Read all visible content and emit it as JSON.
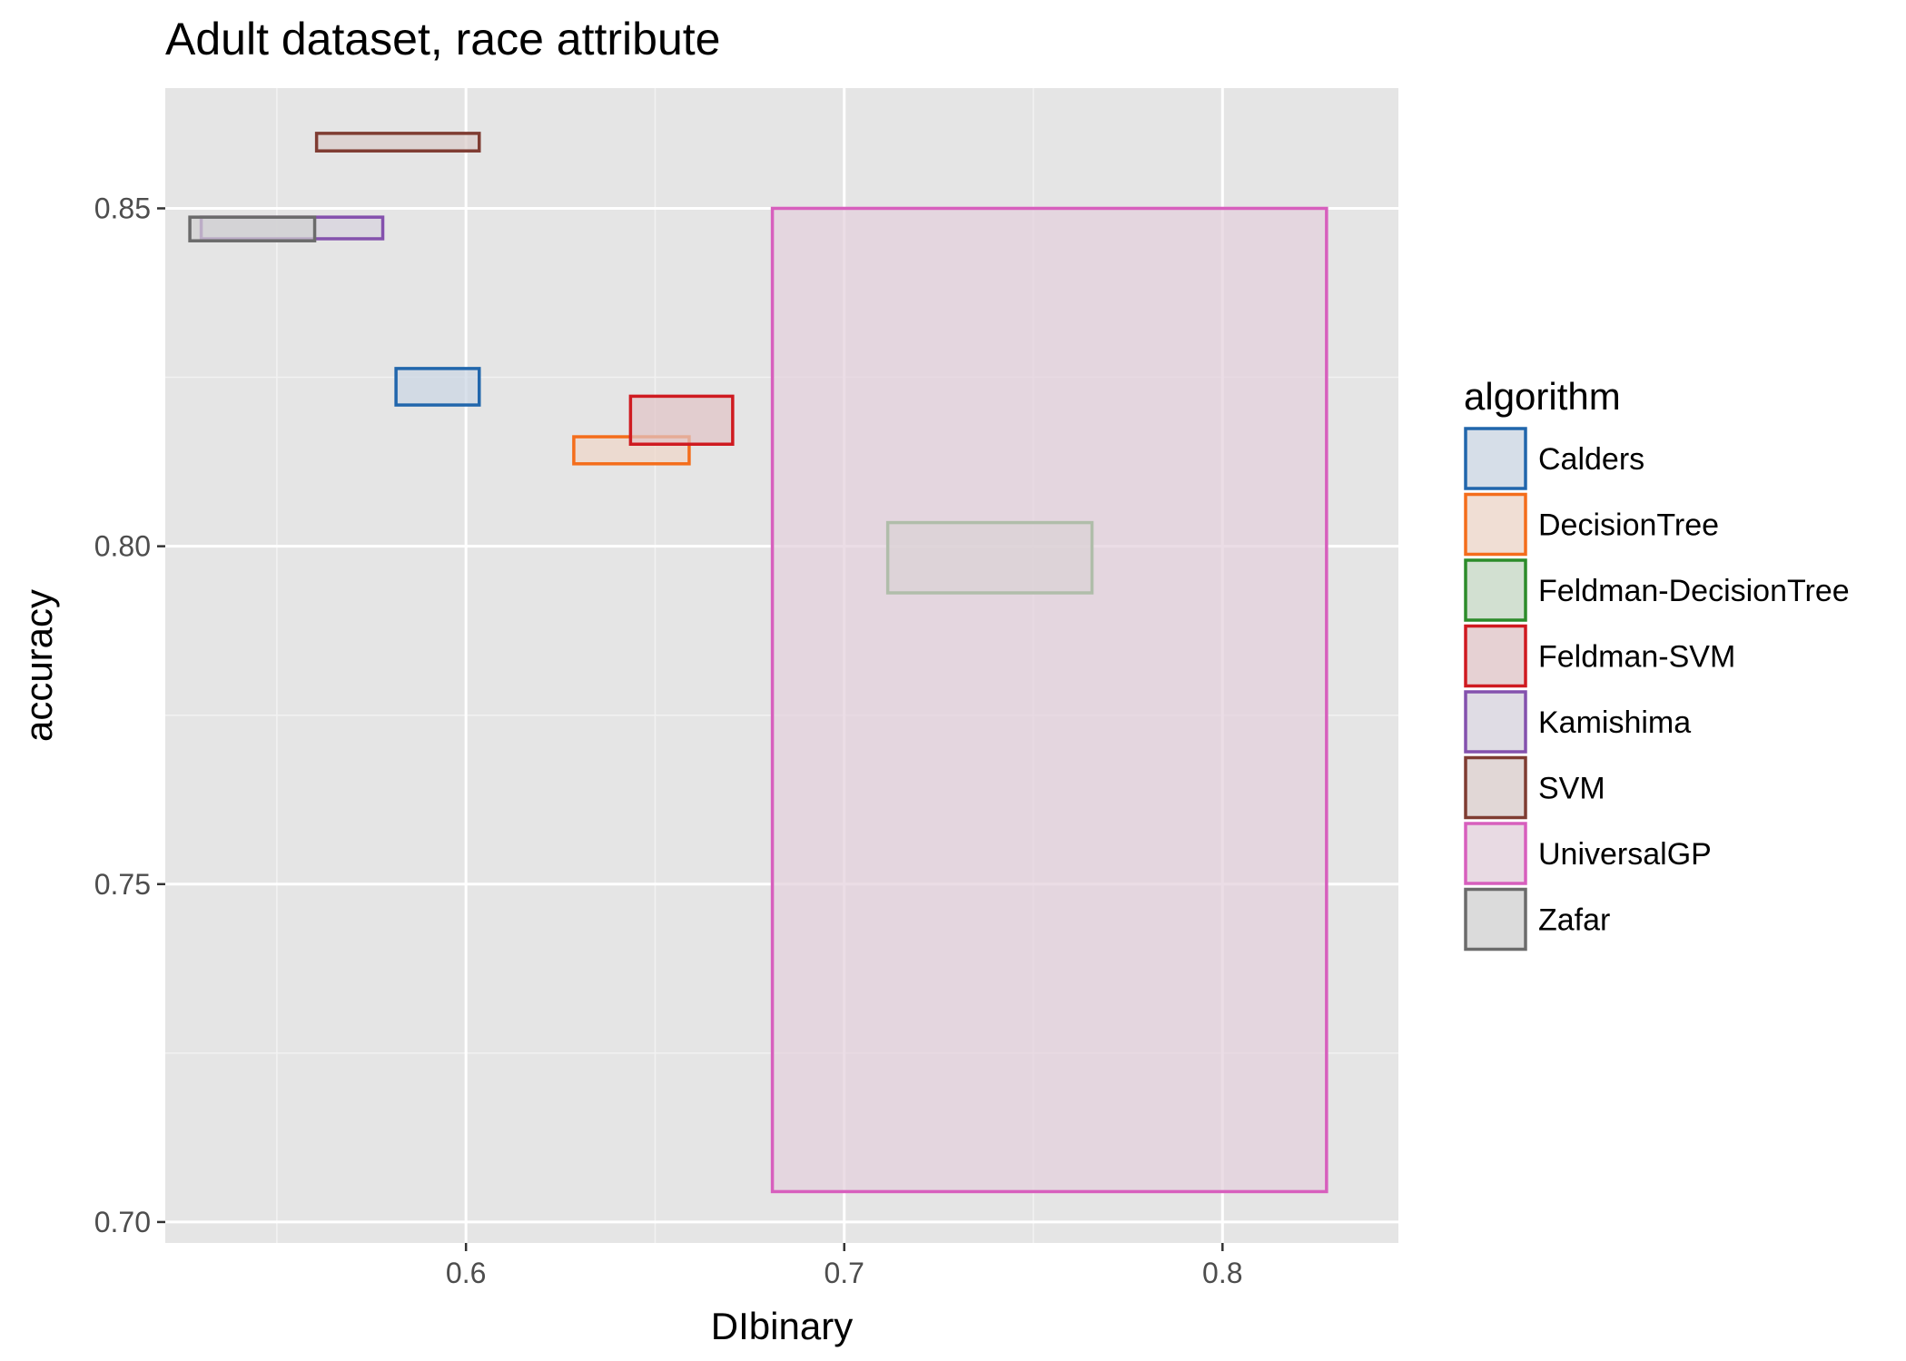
{
  "chart_data": {
    "type": "rectangle",
    "title": "Adult dataset, race attribute",
    "xlabel": "DIbinary",
    "ylabel": "accuracy",
    "xlim": [
      0.5205,
      0.8465
    ],
    "ylim": [
      0.6969,
      0.8678
    ],
    "x_ticks": [
      {
        "value": 0.6,
        "label": "0.6"
      },
      {
        "value": 0.7,
        "label": "0.7"
      },
      {
        "value": 0.8,
        "label": "0.8"
      }
    ],
    "x_minor": [
      0.55,
      0.65,
      0.75
    ],
    "y_ticks": [
      {
        "value": 0.7,
        "label": "0.70"
      },
      {
        "value": 0.75,
        "label": "0.75"
      },
      {
        "value": 0.8,
        "label": "0.80"
      },
      {
        "value": 0.85,
        "label": "0.85"
      }
    ],
    "y_minor": [
      0.725,
      0.775,
      0.825
    ],
    "grid": true,
    "legend": {
      "title": "algorithm",
      "position": "right"
    },
    "series": [
      {
        "name": "Calders",
        "color": "#2166ac",
        "fill": "#cbd6e3",
        "xmin": 0.5815,
        "xmax": 0.6035,
        "ymin": 0.8209,
        "ymax": 0.8263
      },
      {
        "name": "DecisionTree",
        "color": "#f46d1b",
        "fill": "#efd6c7",
        "xmin": 0.6285,
        "xmax": 0.659,
        "ymin": 0.8122,
        "ymax": 0.8162
      },
      {
        "name": "Feldman-DecisionTree",
        "color": "#2c8c2a",
        "fill": "#c5d8c4",
        "xmin": 0.7115,
        "xmax": 0.7655,
        "ymin": 0.7931,
        "ymax": 0.8035
      },
      {
        "name": "Feldman-SVM",
        "color": "#cf1a20",
        "fill": "#e1c4c6",
        "xmin": 0.6435,
        "xmax": 0.6705,
        "ymin": 0.8151,
        "ymax": 0.8222
      },
      {
        "name": "Kamishima",
        "color": "#8451ad",
        "fill": "#d7d2de",
        "xmin": 0.53,
        "xmax": 0.578,
        "ymin": 0.8455,
        "ymax": 0.8487
      },
      {
        "name": "SVM",
        "color": "#7f3c32",
        "fill": "#d9ccca",
        "xmin": 0.5605,
        "xmax": 0.6035,
        "ymin": 0.8585,
        "ymax": 0.8611
      },
      {
        "name": "UniversalGP",
        "color": "#d75fbd",
        "fill": "#e3d0dd",
        "xmin": 0.681,
        "xmax": 0.8275,
        "ymin": 0.7045,
        "ymax": 0.85
      },
      {
        "name": "Zafar",
        "color": "#6b6b6b",
        "fill": "#d1d1d1",
        "xmin": 0.527,
        "xmax": 0.56,
        "ymin": 0.8452,
        "ymax": 0.8487
      }
    ]
  }
}
